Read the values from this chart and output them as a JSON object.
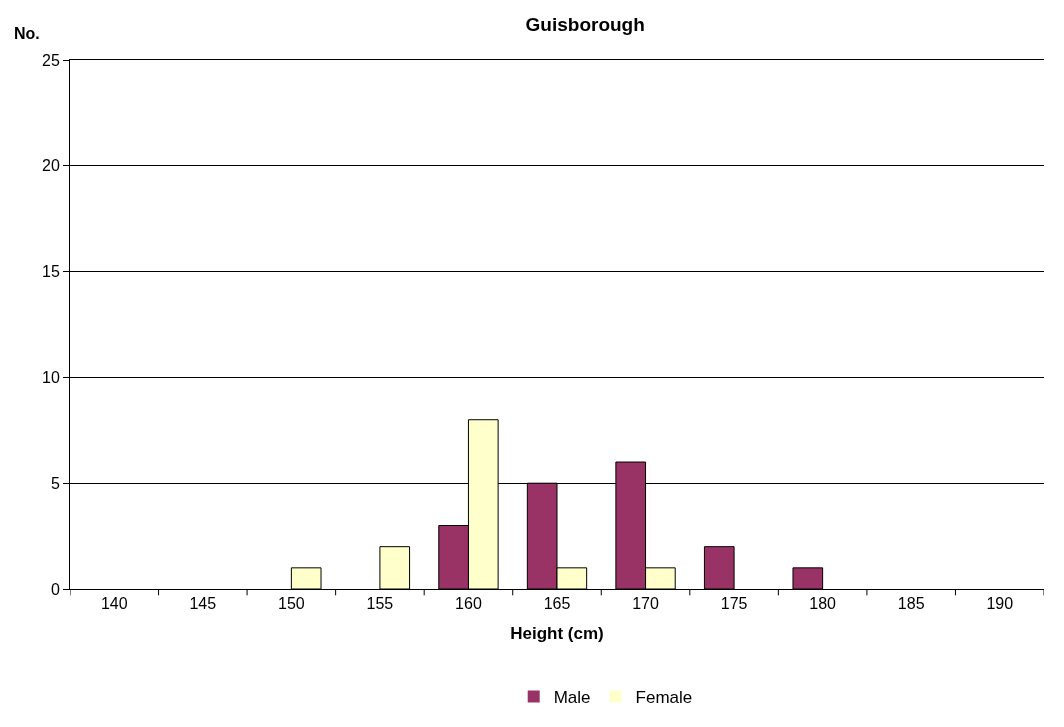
{
  "chart_data": {
    "type": "bar",
    "title": "Guisborough",
    "xlabel": "Height (cm)",
    "ylabel": "No.",
    "categories": [
      "140",
      "145",
      "150",
      "155",
      "160",
      "165",
      "170",
      "175",
      "180",
      "185",
      "190"
    ],
    "series": [
      {
        "name": "Male",
        "color": "#993366",
        "values": [
          0,
          0,
          0,
          0,
          3,
          5,
          6,
          2,
          1,
          0,
          0
        ]
      },
      {
        "name": "Female",
        "color": "#ffffcc",
        "values": [
          0,
          0,
          1,
          2,
          8,
          1,
          1,
          0,
          0,
          0,
          0
        ]
      }
    ],
    "ylim": [
      0,
      25
    ],
    "yticks": [
      0,
      5,
      10,
      15,
      20,
      25
    ],
    "grid": "y",
    "legend": "bottom"
  }
}
